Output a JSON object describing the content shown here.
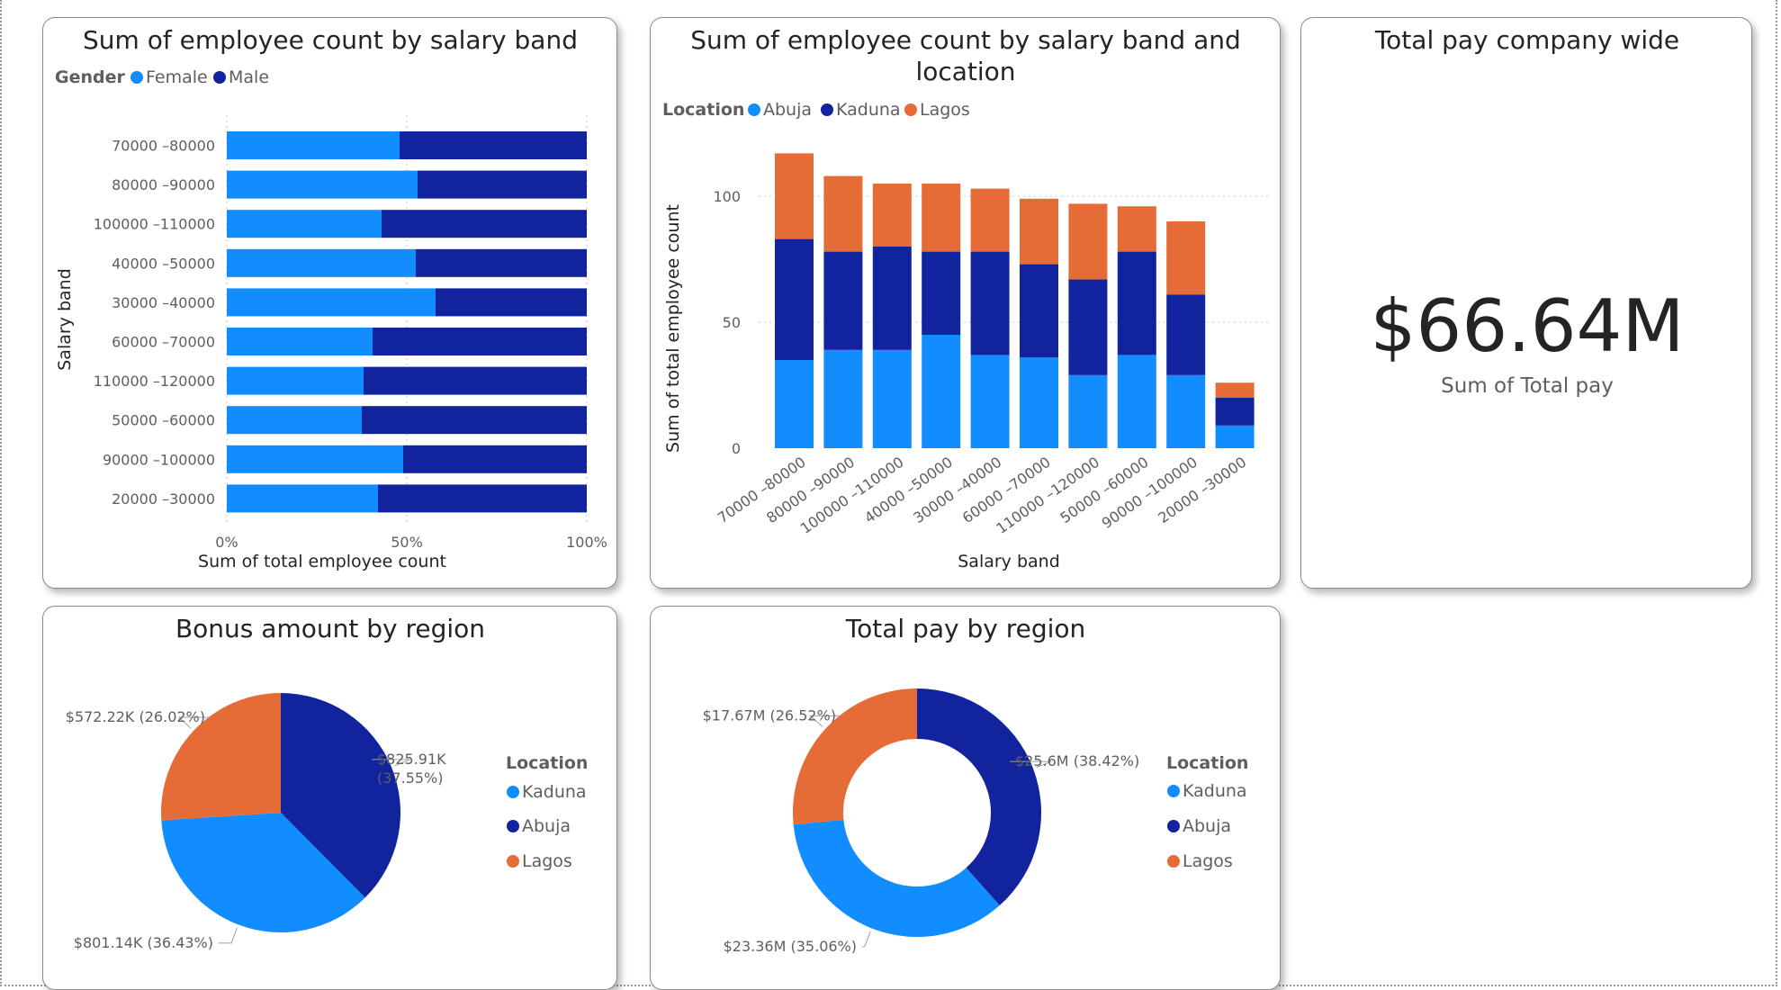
{
  "colors": {
    "female": "#118DFF",
    "male": "#12239E",
    "abuja": "#118DFF",
    "kaduna": "#12239E",
    "lagos": "#E66C37"
  },
  "kpi": {
    "title": "Total pay company wide",
    "value": "$66.64M",
    "label": "Sum of Total pay"
  },
  "chart_data": [
    {
      "type": "bar",
      "orientation": "horizontal",
      "stacking": "percent",
      "title": "Sum of employee count by salary band",
      "legend_title": "Gender",
      "legend_position": "top-left",
      "xlabel": "Sum of total employee count",
      "ylabel": "Salary band",
      "xticks": [
        "0%",
        "50%",
        "100%"
      ],
      "categories": [
        "70000 –80000",
        "80000 –90000",
        "100000 –110000",
        "40000 –50000",
        "30000 –40000",
        "60000 –70000",
        "110000 –120000",
        "50000 –60000",
        "90000 –100000",
        "20000 –30000"
      ],
      "series": [
        {
          "name": "Female",
          "values": [
            0.48,
            0.53,
            0.43,
            0.525,
            0.58,
            0.405,
            0.38,
            0.375,
            0.49,
            0.42
          ]
        },
        {
          "name": "Male",
          "values": [
            0.52,
            0.47,
            0.57,
            0.475,
            0.42,
            0.595,
            0.62,
            0.625,
            0.51,
            0.58
          ]
        }
      ],
      "xlim": [
        0,
        1
      ],
      "grid": true
    },
    {
      "type": "bar",
      "orientation": "vertical",
      "stacking": "stacked",
      "title": "Sum of employee count by salary band and location",
      "legend_title": "Location",
      "legend_position": "top-left",
      "xlabel": "Salary band",
      "ylabel": "Sum of total employee count",
      "yticks": [
        "0",
        "50",
        "100"
      ],
      "categories": [
        "70000 –80000",
        "80000 –90000",
        "100000 –110000",
        "40000 –50000",
        "30000 –40000",
        "60000 –70000",
        "110000 –120000",
        "50000 –60000",
        "90000 –100000",
        "20000 –30000"
      ],
      "series": [
        {
          "name": "Abuja",
          "values": [
            35,
            39,
            39,
            45,
            37,
            36,
            29,
            37,
            29,
            9
          ]
        },
        {
          "name": "Kaduna",
          "values": [
            48,
            39,
            41,
            33,
            41,
            37,
            38,
            41,
            32,
            11
          ]
        },
        {
          "name": "Lagos",
          "values": [
            34,
            30,
            25,
            27,
            25,
            26,
            30,
            18,
            29,
            6
          ]
        }
      ],
      "ylim": [
        0,
        123
      ],
      "grid": true
    },
    {
      "type": "pie",
      "title": "Bonus amount by region",
      "legend_title": "Location",
      "legend_position": "right",
      "slices": [
        {
          "name": "Kaduna",
          "value": 825.91,
          "label1": "$825.91K",
          "label2": "(37.55%)"
        },
        {
          "name": "Abuja",
          "value": 801.14,
          "label1": "$801.14K (36.43%)"
        },
        {
          "name": "Lagos",
          "value": 572.22,
          "label1": "$572.22K (26.02%)"
        }
      ]
    },
    {
      "type": "pie",
      "donut": true,
      "title": "Total pay by region",
      "legend_title": "Location",
      "legend_position": "right",
      "slices": [
        {
          "name": "Kaduna",
          "value": 25.6,
          "label1": "$25.6M (38.42%)"
        },
        {
          "name": "Abuja",
          "value": 23.36,
          "label1": "$23.36M (35.06%)"
        },
        {
          "name": "Lagos",
          "value": 17.67,
          "label1": "$17.67M (26.52%)"
        }
      ]
    }
  ]
}
